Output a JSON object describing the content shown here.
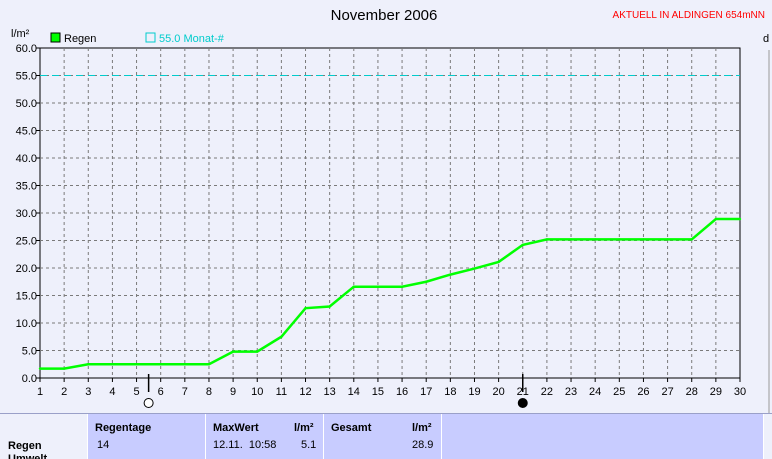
{
  "header": {
    "title": "November 2006",
    "status": "AKTUELL IN ALDINGEN 654mNN",
    "y_unit": "l/m²",
    "corner_label": "d"
  },
  "legend": {
    "series_label": "Regen",
    "reference_label": "55.0 Monat-#"
  },
  "colors": {
    "series": "#00ff00",
    "reference": "#00cccc",
    "grid": "#7a7a7a",
    "status": "#ff0000",
    "panel": "#c8ccff"
  },
  "chart_data": {
    "type": "line",
    "title": "November 2006",
    "ylabel": "l/m²",
    "xlim": [
      1,
      30
    ],
    "ylim": [
      0,
      60
    ],
    "y_ticks": [
      0,
      5,
      10,
      15,
      20,
      25,
      30,
      35,
      40,
      45,
      50,
      55,
      60
    ],
    "x_ticks": [
      1,
      2,
      3,
      4,
      5,
      6,
      7,
      8,
      9,
      10,
      11,
      12,
      13,
      14,
      15,
      16,
      17,
      18,
      19,
      20,
      21,
      22,
      23,
      24,
      25,
      26,
      27,
      28,
      29,
      30
    ],
    "grid": true,
    "series": [
      {
        "name": "Regen",
        "color": "#00ff00",
        "x": [
          1,
          2,
          3,
          4,
          5,
          6,
          7,
          8,
          9,
          10,
          11,
          12,
          13,
          14,
          15,
          16,
          17,
          18,
          19,
          20,
          21,
          22,
          23,
          24,
          25,
          26,
          27,
          28,
          29,
          30
        ],
        "values": [
          1.7,
          1.7,
          2.5,
          2.5,
          2.5,
          2.5,
          2.5,
          2.5,
          4.8,
          4.8,
          7.5,
          12.7,
          13.0,
          16.6,
          16.6,
          16.6,
          17.5,
          18.8,
          19.9,
          21.1,
          24.2,
          25.2,
          25.2,
          25.2,
          25.2,
          25.2,
          25.2,
          25.2,
          28.9,
          28.9
        ]
      }
    ],
    "reference_line": {
      "name": "55.0 Monat-#",
      "value": 55.0,
      "color": "#00cccc",
      "style": "dashed"
    },
    "moon_phases": [
      {
        "day": 5.5,
        "phase": "full-moon"
      },
      {
        "day": 21,
        "phase": "new-moon"
      }
    ]
  },
  "stats": {
    "row_label": "Regen",
    "row_label_2": "Umwelt",
    "regentage": {
      "header": "Regentage",
      "value": "14"
    },
    "maxwert": {
      "header": "MaxWert",
      "unit": "l/m²",
      "datetime": "12.11.  10:58",
      "value": "5.1"
    },
    "gesamt": {
      "header": "Gesamt",
      "unit": "l/m²",
      "value": "28.9"
    }
  }
}
